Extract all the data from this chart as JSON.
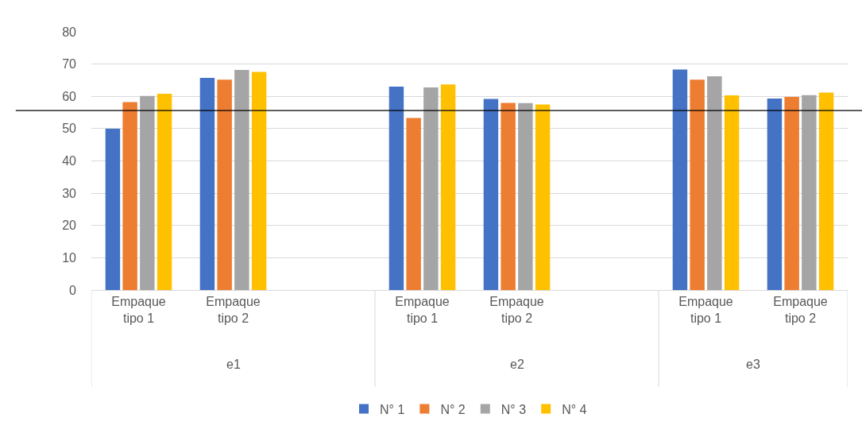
{
  "chart_data": {
    "type": "bar",
    "categories": [
      "Empaque tipo 1",
      "Empaque tipo 2",
      null,
      "Empaque tipo 1",
      "Empaque tipo 2",
      null,
      "Empaque tipo 1",
      "Empaque tipo 2"
    ],
    "series": [
      {
        "name": "N° 1",
        "color": "#4472c4",
        "values": [
          50.0,
          65.7,
          null,
          63.0,
          59.2,
          null,
          68.3,
          59.3
        ]
      },
      {
        "name": "N° 2",
        "color": "#ed7d31",
        "values": [
          58.2,
          65.2,
          null,
          53.3,
          58.0,
          null,
          65.2,
          59.8
        ]
      },
      {
        "name": "N° 3",
        "color": "#a5a5a5",
        "values": [
          60.1,
          68.2,
          null,
          62.8,
          57.9,
          null,
          66.2,
          60.4
        ]
      },
      {
        "name": "N° 4",
        "color": "#ffc000",
        "values": [
          60.8,
          67.6,
          null,
          63.7,
          57.5,
          null,
          60.3,
          61.2
        ]
      }
    ],
    "annotations": [
      "e1",
      "e2",
      "e3"
    ],
    "ylim": [
      0,
      80
    ],
    "yticks": [
      0,
      10,
      20,
      30,
      40,
      50,
      60,
      70,
      80
    ],
    "grid": "y",
    "legend": "bottom",
    "ref_lines": [
      {
        "axis": "y",
        "value": 55.6,
        "color": "#000000"
      }
    ]
  }
}
